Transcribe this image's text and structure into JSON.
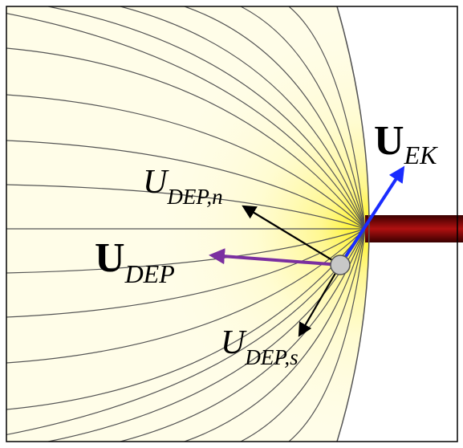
{
  "labels": [
    {
      "main": "U",
      "sub": "EK"
    },
    {
      "main": "U",
      "sub": "DEP,n"
    },
    {
      "main": "U",
      "sub": "DEP"
    },
    {
      "main": "U",
      "sub": "DEP,s"
    }
  ]
}
